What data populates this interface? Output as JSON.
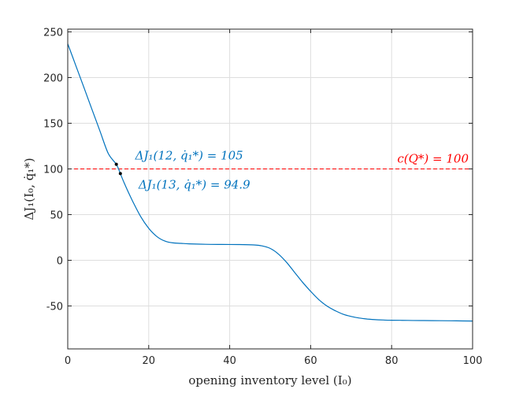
{
  "chart_data": {
    "type": "line",
    "title": "",
    "xlabel": "opening inventory level (I₀)",
    "ylabel": "ΔJ₁(I₀, q̇₁*)",
    "xlim": [
      0,
      100
    ],
    "ylim": [
      -97,
      253
    ],
    "xticks": [
      0,
      20,
      40,
      60,
      80,
      100
    ],
    "yticks": [
      -50,
      0,
      50,
      100,
      150,
      200,
      250
    ],
    "grid": true,
    "series": [
      {
        "color": "#0072BD",
        "x": [
          0,
          2,
          4,
          6,
          8,
          10,
          12,
          13,
          14,
          16,
          18,
          20,
          22,
          24,
          26,
          28,
          30,
          34,
          38,
          42,
          46,
          48,
          50,
          52,
          54,
          56,
          58,
          60,
          62,
          64,
          66,
          68,
          70,
          72,
          74,
          76,
          78,
          80,
          84,
          88,
          92,
          96,
          100
        ],
        "y": [
          237,
          213,
          189,
          165,
          141,
          117,
          105,
          94.9,
          84,
          65,
          48,
          35,
          26,
          21,
          19,
          18.5,
          18,
          17.5,
          17.3,
          17.2,
          16.8,
          15.8,
          13,
          7,
          -2,
          -13,
          -24,
          -34,
          -43,
          -50,
          -55,
          -59,
          -61.5,
          -63.2,
          -64.3,
          -65,
          -65.4,
          -65.6,
          -65.8,
          -66,
          -66.1,
          -66.3,
          -66.5
        ]
      }
    ],
    "threshold": {
      "y": 100,
      "color": "#FF0000",
      "style": "dashed",
      "label": "c(Q*) = 100"
    },
    "markers": [
      {
        "x": 12,
        "y": 105,
        "label": "ΔJ₁(12, q̇₁*) = 105",
        "color": "#0072BD"
      },
      {
        "x": 13,
        "y": 94.9,
        "label": "ΔJ₁(13, q̇₁*) = 94.9",
        "color": "#0072BD"
      }
    ]
  }
}
